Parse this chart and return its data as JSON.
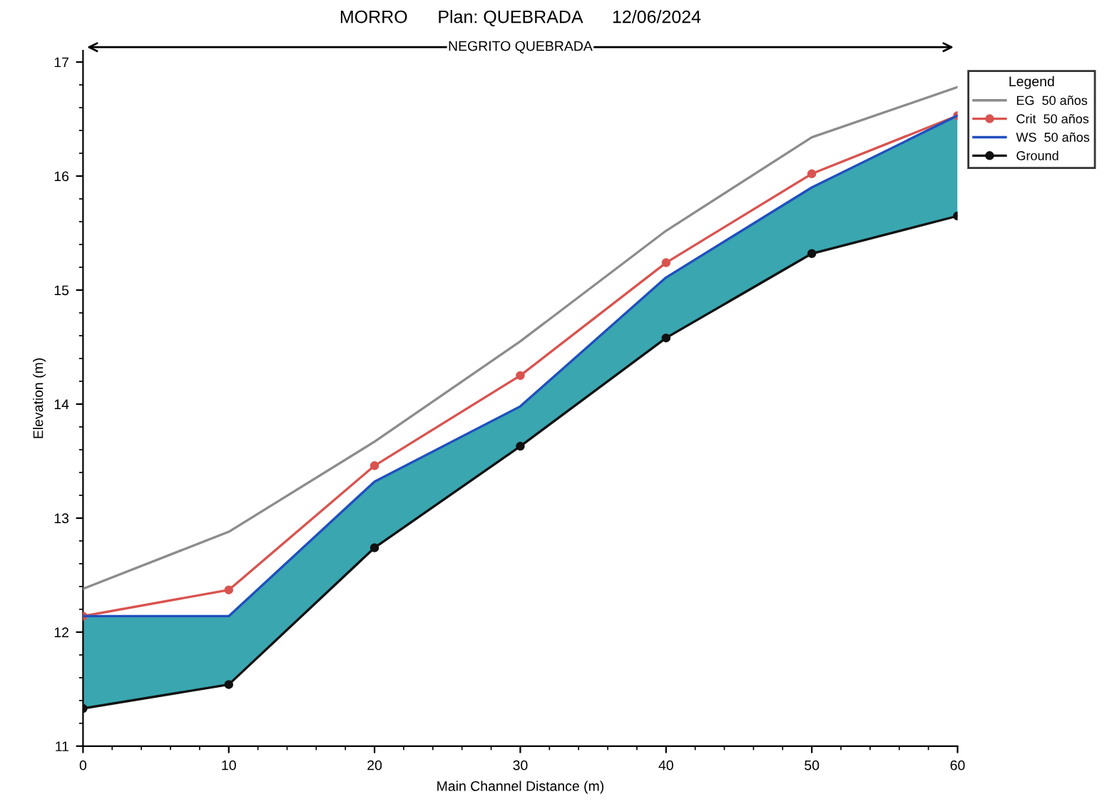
{
  "chart_data": {
    "type": "line",
    "title": "MORRO      Plan: QUEBRADA      12/06/2024",
    "xlabel": "Main Channel Distance (m)",
    "ylabel": "Elevation (m)",
    "legend_title": "Legend",
    "x": [
      0,
      10,
      20,
      30,
      40,
      50,
      60
    ],
    "series": [
      {
        "name": "EG  50 años",
        "color": "#8c8c8c",
        "marker": "none",
        "values": [
          12.38,
          12.88,
          13.67,
          14.55,
          15.52,
          16.34,
          16.78
        ]
      },
      {
        "name": "Crit  50 años",
        "color": "#d9534f",
        "marker": "circle",
        "values": [
          12.14,
          12.37,
          13.46,
          14.25,
          15.24,
          16.02,
          16.53
        ]
      },
      {
        "name": "WS  50 años",
        "color": "#1f4fbf",
        "marker": "none",
        "values": [
          12.14,
          12.14,
          13.32,
          13.98,
          15.11,
          15.9,
          16.53
        ],
        "lower": [
          11.33,
          11.54,
          12.74,
          13.63,
          14.58,
          15.32,
          15.65
        ],
        "upper": [
          12.14,
          12.14,
          13.32,
          13.98,
          15.11,
          15.9,
          16.53
        ]
      },
      {
        "name": "Ground",
        "color": "#111111",
        "marker": "circle",
        "values": [
          11.33,
          11.54,
          12.74,
          13.63,
          14.58,
          15.32,
          15.65
        ]
      }
    ],
    "annotations": [
      "NEGRITO QUEBRADA"
    ],
    "xlim": [
      0,
      60
    ],
    "xticks": [
      0,
      10,
      20,
      30,
      40,
      50,
      60
    ],
    "ylim": [
      11,
      17.1
    ],
    "yticks": [
      11,
      12,
      13,
      14,
      15,
      16,
      17
    ],
    "grid": false,
    "legend": "top right",
    "line_style": "solid"
  }
}
